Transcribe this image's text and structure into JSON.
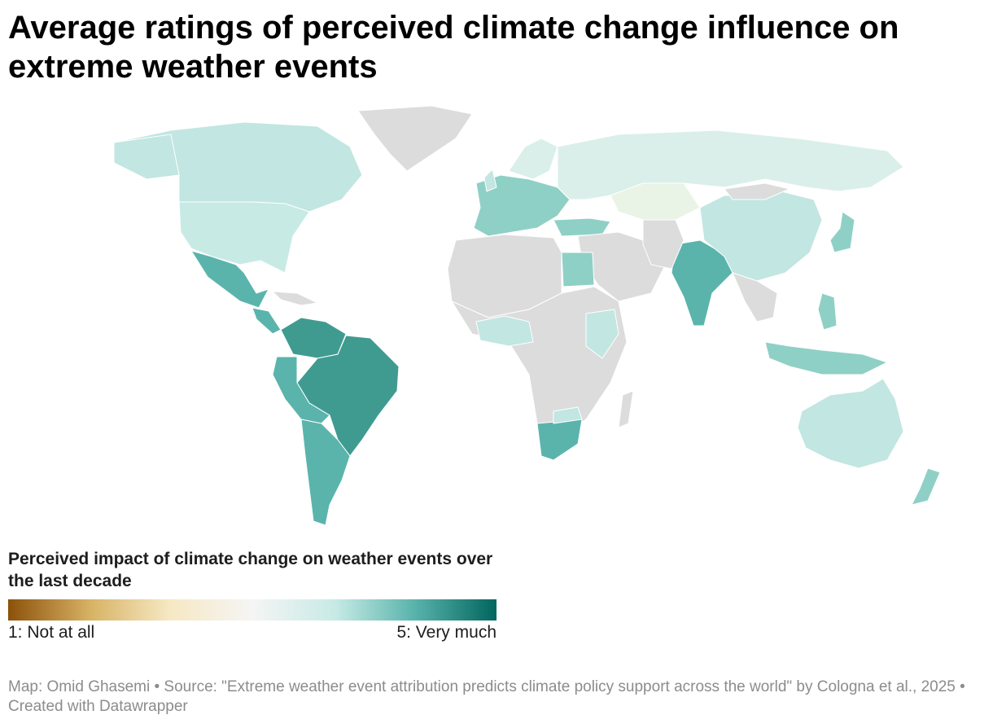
{
  "title": "Average ratings of perceived climate change influence on extreme weather events",
  "legend": {
    "title": "Perceived impact of climate change on weather events over the last decade",
    "min_label": "1: Not at all",
    "max_label": "5: Very much",
    "scale_min": 1,
    "scale_max": 5,
    "gradient": [
      "#8c510a",
      "#d8b365",
      "#f6e8c3",
      "#f5f5f5",
      "#c7eae5",
      "#5ab4ac",
      "#01665e"
    ]
  },
  "no_data_color": "#dcdcdc",
  "footer": "Map: Omid Ghasemi • Source: \"Extreme weather event attribution predicts climate policy support across the world\" by Cologna et al., 2025 • Created with Datawrapper",
  "colors": {
    "very_high": "#3f9b90",
    "high": "#5ab4ac",
    "mid_high": "#8fd0c6",
    "mid": "#c2e6e1",
    "low_mid": "#daefe9",
    "low": "#e9f3e6"
  }
}
